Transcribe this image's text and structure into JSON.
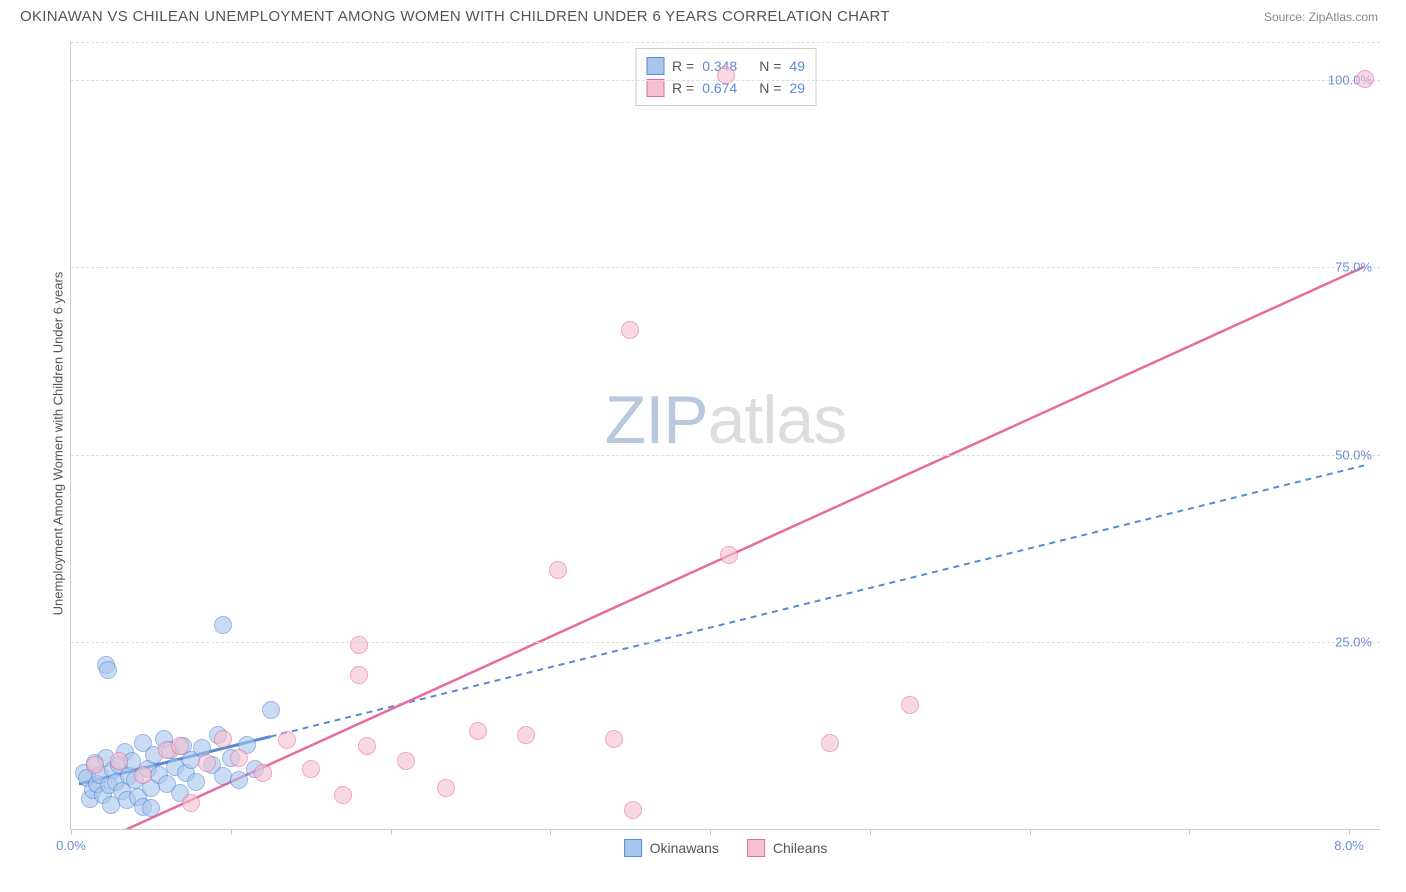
{
  "title": "OKINAWAN VS CHILEAN UNEMPLOYMENT AMONG WOMEN WITH CHILDREN UNDER 6 YEARS CORRELATION CHART",
  "source_prefix": "Source: ",
  "source_name": "ZipAtlas.com",
  "y_axis_label": "Unemployment Among Women with Children Under 6 years",
  "watermark_a": "ZIP",
  "watermark_b": "atlas",
  "chart": {
    "type": "scatter",
    "background_color": "#ffffff",
    "grid_color": "#dddddd",
    "axis_color": "#cccccc",
    "label_color": "#6a8fd8",
    "xlim": [
      0,
      8.2
    ],
    "ylim": [
      0,
      105
    ],
    "x_ticks": [
      0,
      1,
      2,
      3,
      4,
      5,
      6,
      7,
      8
    ],
    "x_tick_labels": {
      "0": "0.0%",
      "8": "8.0%"
    },
    "y_ticks": [
      25,
      50,
      75,
      100
    ],
    "y_tick_labels": {
      "25": "25.0%",
      "50": "50.0%",
      "75": "75.0%",
      "100": "100.0%"
    },
    "point_radius": 9,
    "series": [
      {
        "id": "okinawans",
        "label": "Okinawans",
        "fill_color": "#a8c5ec",
        "stroke_color": "#5a8ad6",
        "fill_opacity": 0.6,
        "r_label": "R =",
        "r_value": "0.348",
        "n_label": "N =",
        "n_value": "49",
        "trend": {
          "x1": 0.05,
          "y1": 6.0,
          "x2": 8.1,
          "y2": 48.5,
          "width": 2,
          "dash": "6 5",
          "extrapolated_after_x": 1.25
        },
        "points": [
          [
            0.08,
            7.5
          ],
          [
            0.1,
            6.8
          ],
          [
            0.12,
            4.0
          ],
          [
            0.14,
            5.2
          ],
          [
            0.15,
            8.8
          ],
          [
            0.16,
            6.0
          ],
          [
            0.18,
            7.2
          ],
          [
            0.2,
            4.5
          ],
          [
            0.22,
            9.5
          ],
          [
            0.24,
            5.8
          ],
          [
            0.25,
            3.2
          ],
          [
            0.26,
            7.8
          ],
          [
            0.28,
            6.3
          ],
          [
            0.3,
            8.5
          ],
          [
            0.32,
            5.0
          ],
          [
            0.34,
            10.2
          ],
          [
            0.35,
            3.8
          ],
          [
            0.36,
            7.0
          ],
          [
            0.38,
            9.0
          ],
          [
            0.4,
            6.5
          ],
          [
            0.42,
            4.2
          ],
          [
            0.45,
            11.5
          ],
          [
            0.48,
            8.0
          ],
          [
            0.5,
            5.5
          ],
          [
            0.52,
            9.8
          ],
          [
            0.55,
            7.2
          ],
          [
            0.58,
            12.0
          ],
          [
            0.22,
            21.8
          ],
          [
            0.23,
            21.2
          ],
          [
            0.6,
            6.0
          ],
          [
            0.62,
            10.5
          ],
          [
            0.65,
            8.2
          ],
          [
            0.68,
            4.8
          ],
          [
            0.7,
            11.0
          ],
          [
            0.72,
            7.5
          ],
          [
            0.75,
            9.2
          ],
          [
            0.78,
            6.2
          ],
          [
            0.82,
            10.8
          ],
          [
            0.88,
            8.5
          ],
          [
            0.92,
            12.5
          ],
          [
            0.95,
            7.0
          ],
          [
            1.0,
            9.5
          ],
          [
            1.05,
            6.5
          ],
          [
            1.1,
            11.2
          ],
          [
            1.15,
            8.0
          ],
          [
            1.25,
            15.8
          ],
          [
            0.95,
            27.2
          ],
          [
            0.45,
            3.0
          ],
          [
            0.5,
            2.8
          ]
        ]
      },
      {
        "id": "chileans",
        "label": "Chileans",
        "fill_color": "#f5c1d1",
        "stroke_color": "#e86ba0",
        "fill_opacity": 0.6,
        "r_label": "R =",
        "r_value": "0.674",
        "n_label": "N =",
        "n_value": "29",
        "trend": {
          "x1": 0.25,
          "y1": -1.0,
          "x2": 8.1,
          "y2": 75.0,
          "width": 2.5,
          "dash": null,
          "extrapolated_after_x": null
        },
        "points": [
          [
            0.15,
            8.5
          ],
          [
            0.3,
            9.0
          ],
          [
            0.45,
            7.2
          ],
          [
            0.6,
            10.5
          ],
          [
            0.68,
            11.0
          ],
          [
            0.75,
            3.5
          ],
          [
            0.85,
            8.8
          ],
          [
            0.95,
            12.0
          ],
          [
            1.05,
            9.5
          ],
          [
            1.2,
            7.5
          ],
          [
            1.35,
            11.8
          ],
          [
            1.5,
            8.0
          ],
          [
            1.7,
            4.5
          ],
          [
            1.8,
            24.5
          ],
          [
            1.85,
            11.0
          ],
          [
            1.8,
            20.5
          ],
          [
            2.1,
            9.0
          ],
          [
            2.35,
            5.5
          ],
          [
            2.55,
            13.0
          ],
          [
            2.85,
            12.5
          ],
          [
            3.05,
            34.5
          ],
          [
            3.4,
            12.0
          ],
          [
            3.5,
            66.5
          ],
          [
            3.52,
            2.5
          ],
          [
            4.12,
            36.5
          ],
          [
            4.75,
            11.5
          ],
          [
            5.25,
            16.5
          ],
          [
            4.1,
            100.5
          ],
          [
            8.1,
            100.0
          ]
        ]
      }
    ]
  }
}
